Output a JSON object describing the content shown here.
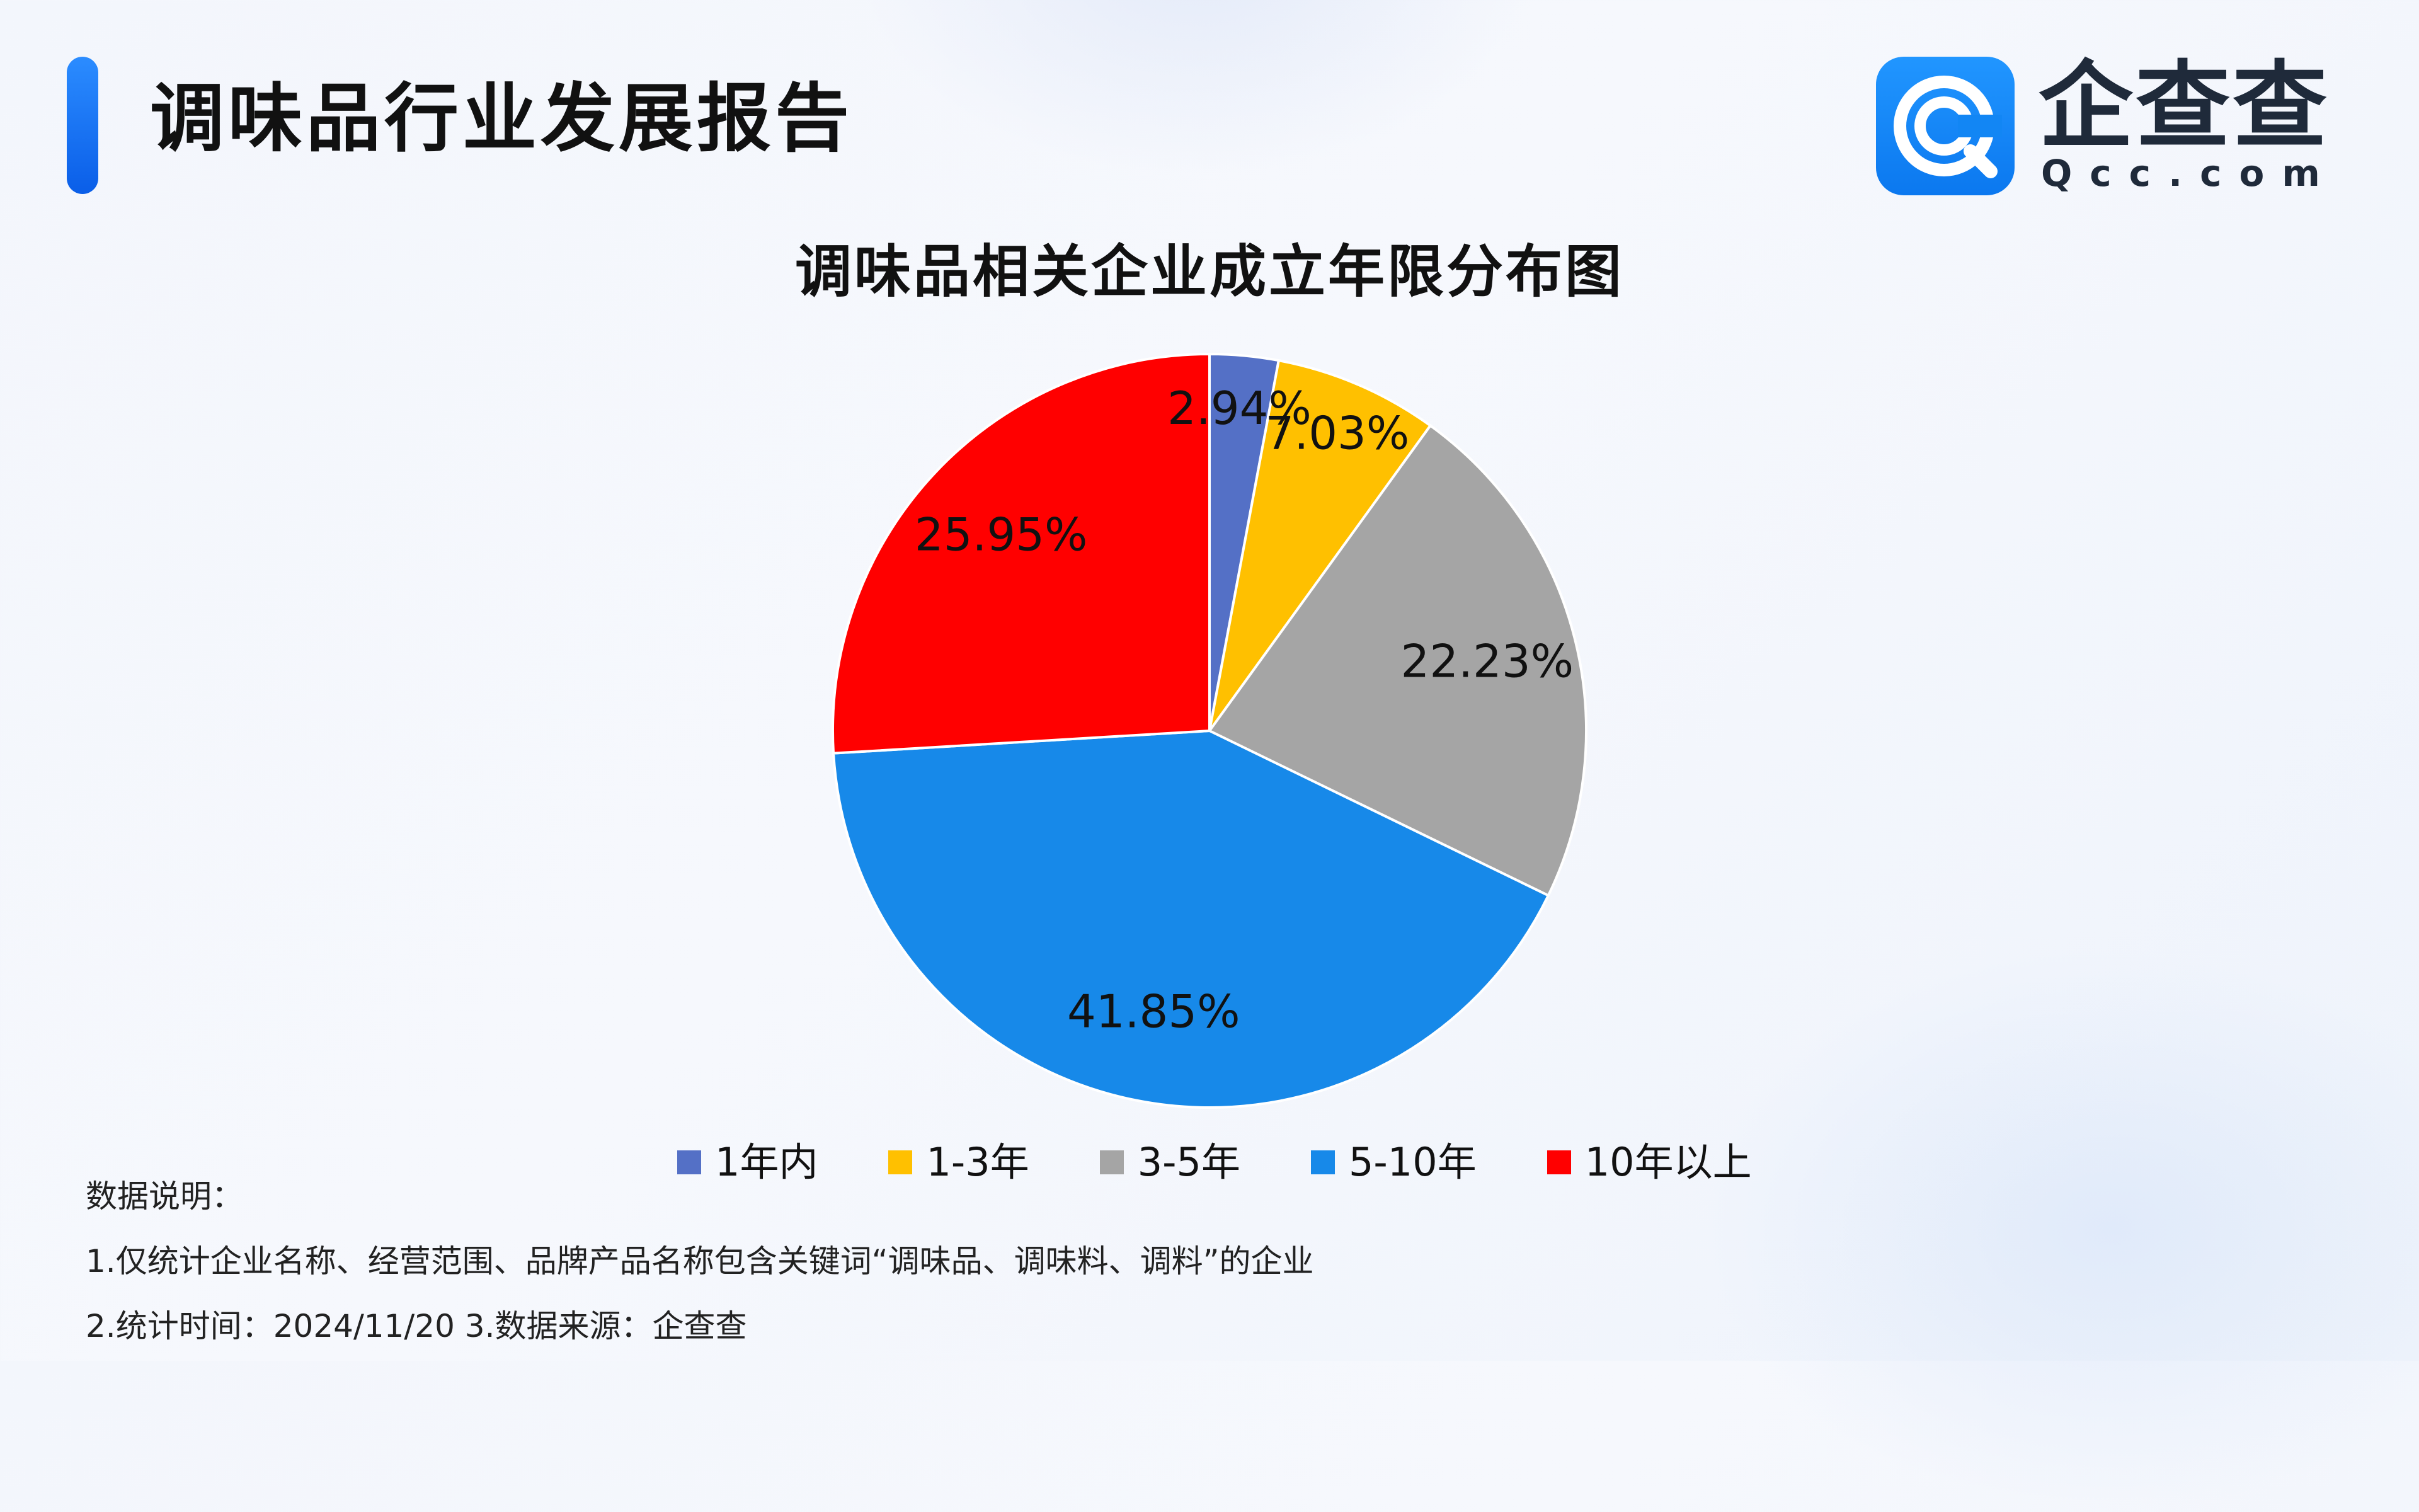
{
  "header": {
    "title": "调味品行业发展报告",
    "logo_text": "企查查",
    "logo_sub": "Qcc.com",
    "accent_color": "#1677ff"
  },
  "chart_data": {
    "type": "pie",
    "title": "调味品相关企业成立年限分布图",
    "legend_position": "bottom",
    "slices": [
      {
        "name": "1年内",
        "value": 2.94,
        "label": "2.94%",
        "color": "#5470c6"
      },
      {
        "name": "1-3年",
        "value": 7.03,
        "label": "7.03%",
        "color": "#ffc000"
      },
      {
        "name": "3-5年",
        "value": 22.23,
        "label": "22.23%",
        "color": "#a5a5a5"
      },
      {
        "name": "5-10年",
        "value": 41.85,
        "label": "41.85%",
        "color": "#1789e9"
      },
      {
        "name": "10年以上",
        "value": 25.95,
        "label": "25.95%",
        "color": "#ff0000"
      }
    ]
  },
  "notes": {
    "heading": "数据说明：",
    "line1": "1.仅统计企业名称、经营范围、品牌产品名称包含关键词“调味品、调味料、调料”的企业",
    "line2": "2.统计时间：2024/11/20    3.数据来源：企查查"
  }
}
